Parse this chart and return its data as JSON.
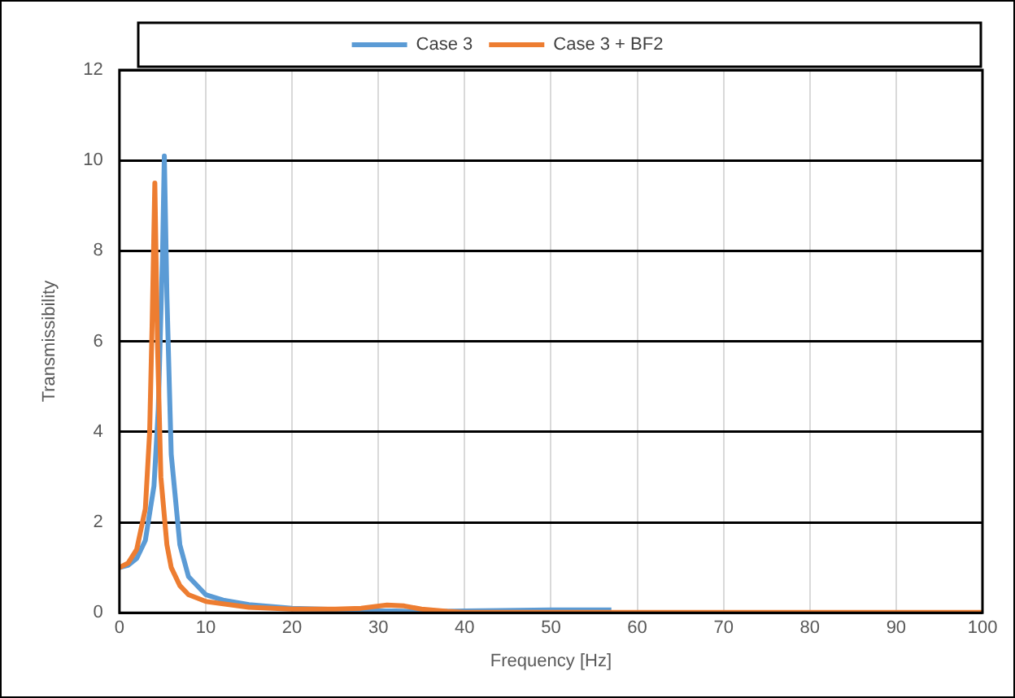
{
  "chart_data": {
    "type": "line",
    "xlabel": "Frequency [Hz]",
    "ylabel": "Transmissibility",
    "xlim": [
      0,
      100
    ],
    "xticks": [
      0,
      10,
      20,
      30,
      40,
      50,
      60,
      70,
      80,
      90,
      100
    ],
    "ylim": [
      0,
      12
    ],
    "yticks": [
      0,
      2,
      4,
      6,
      8,
      10,
      12
    ],
    "grid": true,
    "legend": "top",
    "marker": "none",
    "line_style": "solid",
    "series": [
      {
        "name": "Case 3",
        "color": "#5b9bd5",
        "x": [
          0,
          1,
          2,
          3,
          4,
          4.5,
          5,
          5.2,
          5.5,
          6,
          7,
          8,
          10,
          12,
          15,
          20,
          25,
          28,
          30,
          32,
          35,
          40,
          50,
          57
        ],
        "values": [
          1.0,
          1.05,
          1.2,
          1.6,
          2.8,
          4.5,
          8,
          10.1,
          7,
          3.5,
          1.5,
          0.8,
          0.4,
          0.28,
          0.18,
          0.1,
          0.07,
          0.05,
          0.04,
          0.04,
          0.02,
          0.04,
          0.06,
          0.06
        ]
      },
      {
        "name": "Case 3 + BF2",
        "color": "#ed7d31",
        "x": [
          0,
          1,
          2,
          3,
          3.5,
          3.8,
          4.1,
          4.4,
          4.8,
          5.5,
          6,
          7,
          8,
          10,
          15,
          20,
          25,
          28,
          31,
          33,
          35,
          38,
          40,
          60,
          100
        ],
        "values": [
          1.0,
          1.1,
          1.4,
          2.3,
          4,
          6.5,
          9.5,
          6,
          3,
          1.5,
          1,
          0.6,
          0.4,
          0.25,
          0.12,
          0.08,
          0.08,
          0.1,
          0.17,
          0.15,
          0.08,
          0.03,
          0.01,
          0.01,
          0.01
        ]
      }
    ]
  }
}
